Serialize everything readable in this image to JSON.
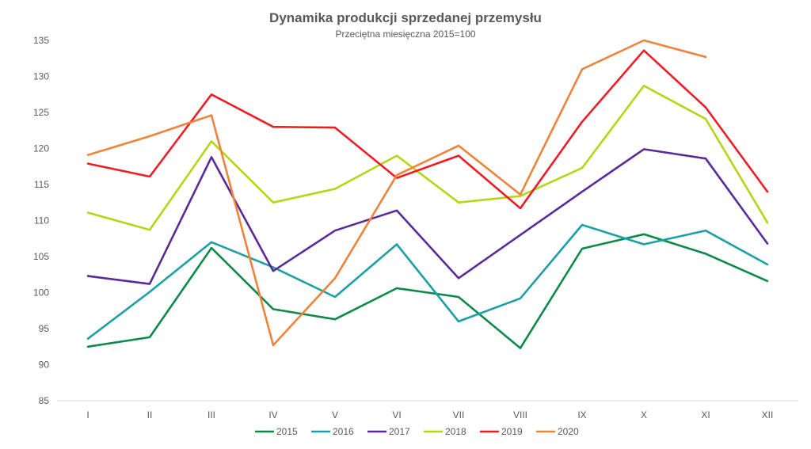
{
  "chart_data": {
    "type": "line",
    "title": "Dynamika produkcji sprzedanej przemysłu",
    "subtitle": "Przeciętna miesięczna 2015=100",
    "xlabel": "",
    "ylabel": "",
    "categories": [
      "I",
      "II",
      "III",
      "IV",
      "V",
      "VI",
      "VII",
      "VIII",
      "IX",
      "X",
      "XI",
      "XII"
    ],
    "ylim": [
      85,
      135
    ],
    "yticks": [
      85,
      90,
      95,
      100,
      105,
      110,
      115,
      120,
      125,
      130,
      135
    ],
    "grid": false,
    "legend_position": "bottom",
    "series": [
      {
        "name": "2015",
        "color": "#0b8a49",
        "values": [
          92.5,
          93.8,
          106.2,
          97.7,
          96.3,
          100.6,
          99.4,
          92.3,
          106.1,
          108.1,
          105.4,
          101.6
        ]
      },
      {
        "name": "2016",
        "color": "#1aa0a6",
        "values": [
          93.6,
          100.1,
          107.0,
          103.5,
          99.4,
          106.7,
          96.0,
          99.2,
          109.4,
          106.7,
          108.6,
          103.9
        ]
      },
      {
        "name": "2017",
        "color": "#5b2a9a",
        "values": [
          102.3,
          101.2,
          118.8,
          103.0,
          108.6,
          111.4,
          102.0,
          108.0,
          114.0,
          119.9,
          118.6,
          106.8
        ]
      },
      {
        "name": "2018",
        "color": "#b5d515",
        "values": [
          111.1,
          108.7,
          121.0,
          112.5,
          114.4,
          119.0,
          112.5,
          113.4,
          117.3,
          128.7,
          124.1,
          109.7
        ]
      },
      {
        "name": "2019",
        "color": "#ee1c24",
        "values": [
          117.9,
          116.1,
          127.5,
          123.0,
          122.9,
          115.9,
          119.0,
          111.7,
          123.7,
          133.6,
          125.7,
          114.0
        ]
      },
      {
        "name": "2020",
        "color": "#f0833a",
        "values": [
          119.1,
          121.7,
          124.6,
          92.7,
          102.0,
          116.3,
          120.4,
          113.6,
          131.0,
          135.0,
          132.7,
          null
        ]
      }
    ]
  }
}
